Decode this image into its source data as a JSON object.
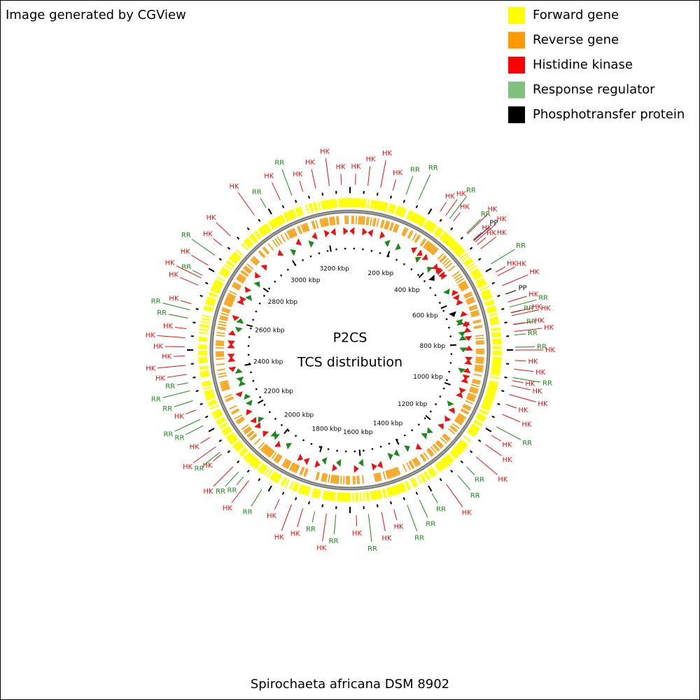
{
  "header": {
    "credit": "Image generated by CGView"
  },
  "legend": [
    {
      "label": "Forward gene",
      "color": "#ffff00"
    },
    {
      "label": "Reverse gene",
      "color": "#ff9900"
    },
    {
      "label": "Histidine kinase",
      "color": "#ff0000"
    },
    {
      "label": "Response regulator",
      "color": "#80c080"
    },
    {
      "label": "Phosphotransfer protein",
      "color": "#000000"
    }
  ],
  "map": {
    "title": "P2CS",
    "subtitle": "TCS distribution",
    "range": [
      0,
      3300
    ],
    "ticks": [
      {
        "value": 200,
        "label": "200 kbp"
      },
      {
        "value": 400,
        "label": "400 kbp"
      },
      {
        "value": 600,
        "label": "600 kbp"
      },
      {
        "value": 800,
        "label": "800 kbp"
      },
      {
        "value": 1000,
        "label": "1000 kbp"
      },
      {
        "value": 1200,
        "label": "1200 kbp"
      },
      {
        "value": 1400,
        "label": "1400 kbp"
      },
      {
        "value": 1600,
        "label": "1600 kbp"
      },
      {
        "value": 1800,
        "label": "1800 kbp"
      },
      {
        "value": 2000,
        "label": "2000 kbp"
      },
      {
        "value": 2200,
        "label": "2200 kbp"
      },
      {
        "value": 2400,
        "label": "2400 kbp"
      },
      {
        "value": 2600,
        "label": "2600 kbp"
      },
      {
        "value": 2800,
        "label": "2800 kbp"
      },
      {
        "value": 3000,
        "label": "3000 kbp"
      },
      {
        "value": 3200,
        "label": "3200 kbp"
      }
    ],
    "feature_colors": {
      "HK": "#ee1111",
      "RR": "#1a8a1a",
      "PP": "#000000"
    },
    "features": [
      {
        "label": "HK",
        "kbp": 17
      },
      {
        "label": "HK",
        "kbp": 57
      },
      {
        "label": "HK",
        "kbp": 98
      },
      {
        "label": "HK",
        "kbp": 138
      },
      {
        "label": "RR",
        "kbp": 182
      },
      {
        "label": "RR",
        "kbp": 225
      },
      {
        "label": "HK",
        "kbp": 303
      },
      {
        "label": "HK",
        "kbp": 325
      },
      {
        "label": "RR",
        "kbp": 341
      },
      {
        "label": "HK",
        "kbp": 355
      },
      {
        "label": "RR",
        "kbp": 412
      },
      {
        "label": "HK",
        "kbp": 416
      },
      {
        "label": "HK",
        "kbp": 442
      },
      {
        "label": "PP",
        "kbp": 445
      },
      {
        "label": "HK",
        "kbp": 451
      },
      {
        "label": "HK",
        "kbp": 462
      },
      {
        "label": "HK",
        "kbp": 479
      },
      {
        "label": "RR",
        "kbp": 537
      },
      {
        "label": "HK",
        "kbp": 567
      },
      {
        "label": "HK",
        "kbp": 580
      },
      {
        "label": "HK",
        "kbp": 615
      },
      {
        "label": "PP",
        "kbp": 644
      },
      {
        "label": "HK",
        "kbp": 670
      },
      {
        "label": "RR",
        "kbp": 687
      },
      {
        "label": "RR",
        "kbp": 705
      },
      {
        "label": "HK",
        "kbp": 706
      },
      {
        "label": "HK",
        "kbp": 715
      },
      {
        "label": "RR",
        "kbp": 743
      },
      {
        "label": "HK",
        "kbp": 744
      },
      {
        "label": "HK",
        "kbp": 766
      },
      {
        "label": "RR",
        "kbp": 777
      },
      {
        "label": "RR",
        "kbp": 816
      },
      {
        "label": "HK",
        "kbp": 825
      },
      {
        "label": "HK",
        "kbp": 858
      },
      {
        "label": "HK",
        "kbp": 886
      },
      {
        "label": "RR",
        "kbp": 913
      },
      {
        "label": "HK",
        "kbp": 923
      },
      {
        "label": "HK",
        "kbp": 939
      },
      {
        "label": "HK",
        "kbp": 968
      },
      {
        "label": "HK",
        "kbp": 1001
      },
      {
        "label": "HK",
        "kbp": 1035
      },
      {
        "label": "RR",
        "kbp": 1079
      },
      {
        "label": "HK",
        "kbp": 1110
      },
      {
        "label": "HK",
        "kbp": 1145
      },
      {
        "label": "HK",
        "kbp": 1194
      },
      {
        "label": "RR",
        "kbp": 1238
      },
      {
        "label": "RR",
        "kbp": 1277
      },
      {
        "label": "HK",
        "kbp": 1323
      },
      {
        "label": "RR",
        "kbp": 1377
      },
      {
        "label": "RR",
        "kbp": 1422
      },
      {
        "label": "RR",
        "kbp": 1464
      },
      {
        "label": "HK",
        "kbp": 1509
      },
      {
        "label": "HK",
        "kbp": 1549
      },
      {
        "label": "RR",
        "kbp": 1591
      },
      {
        "label": "HK",
        "kbp": 1630
      },
      {
        "label": "RR",
        "kbp": 1695
      },
      {
        "label": "HK",
        "kbp": 1725
      },
      {
        "label": "RR",
        "kbp": 1763
      },
      {
        "label": "HK",
        "kbp": 1802
      },
      {
        "label": "HK",
        "kbp": 1840
      },
      {
        "label": "HK",
        "kbp": 1882
      },
      {
        "label": "RR",
        "kbp": 1946
      },
      {
        "label": "HK",
        "kbp": 1996
      },
      {
        "label": "RR",
        "kbp": 2017
      },
      {
        "label": "RR",
        "kbp": 2039
      },
      {
        "label": "HK",
        "kbp": 2063
      },
      {
        "label": "HK",
        "kbp": 2117
      },
      {
        "label": "RR",
        "kbp": 2125
      },
      {
        "label": "HK",
        "kbp": 2147
      },
      {
        "label": "HK",
        "kbp": 2182
      },
      {
        "label": "RR",
        "kbp": 2225
      },
      {
        "label": "RR",
        "kbp": 2247
      },
      {
        "label": "HK",
        "kbp": 2280
      },
      {
        "label": "RR",
        "kbp": 2311
      },
      {
        "label": "RR",
        "kbp": 2344
      },
      {
        "label": "RR",
        "kbp": 2370
      },
      {
        "label": "HK",
        "kbp": 2397
      },
      {
        "label": "HK",
        "kbp": 2426
      },
      {
        "label": "HK",
        "kbp": 2456
      },
      {
        "label": "HK",
        "kbp": 2485
      },
      {
        "label": "HK",
        "kbp": 2514
      },
      {
        "label": "HK",
        "kbp": 2543
      },
      {
        "label": "RR",
        "kbp": 2577
      },
      {
        "label": "RR",
        "kbp": 2604
      },
      {
        "label": "HK",
        "kbp": 2624
      },
      {
        "label": "HK",
        "kbp": 2687
      },
      {
        "label": "HK",
        "kbp": 2712
      },
      {
        "label": "RR",
        "kbp": 2721
      },
      {
        "label": "HK",
        "kbp": 2758
      },
      {
        "label": "RR",
        "kbp": 2796
      },
      {
        "label": "HK",
        "kbp": 2834
      },
      {
        "label": "HK",
        "kbp": 2875
      },
      {
        "label": "HK",
        "kbp": 2976
      },
      {
        "label": "RR",
        "kbp": 3020
      },
      {
        "label": "HK",
        "kbp": 3071
      },
      {
        "label": "RR",
        "kbp": 3111
      },
      {
        "label": "HK",
        "kbp": 3148
      },
      {
        "label": "HK",
        "kbp": 3190
      },
      {
        "label": "HK",
        "kbp": 3234
      },
      {
        "label": "HK",
        "kbp": 3273
      }
    ]
  },
  "footer": {
    "organism": "Spirochaeta africana DSM 8902"
  }
}
